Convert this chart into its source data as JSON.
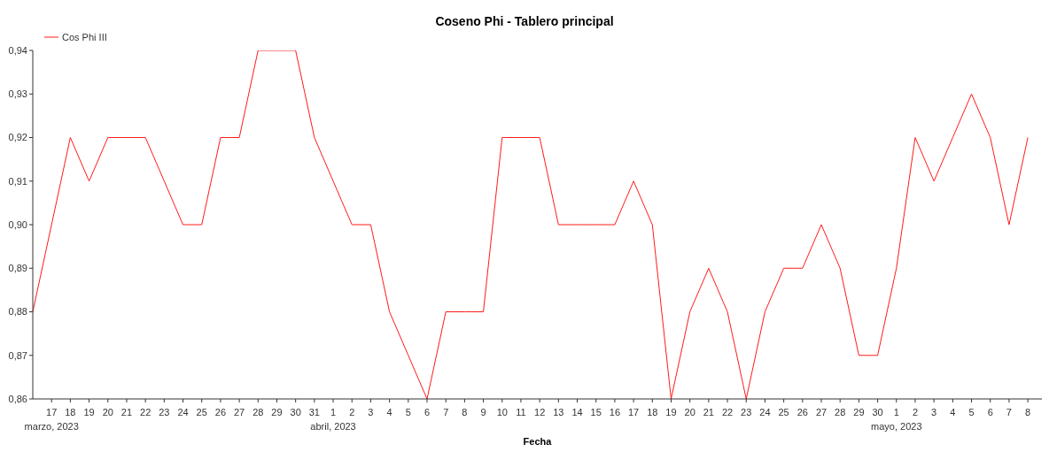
{
  "chart_data": {
    "type": "line",
    "title": "Coseno Phi - Tablero principal",
    "xlabel": "Fecha",
    "x": [
      "2023-03-16",
      "2023-03-17",
      "2023-03-18",
      "2023-03-19",
      "2023-03-20",
      "2023-03-21",
      "2023-03-22",
      "2023-03-23",
      "2023-03-24",
      "2023-03-25",
      "2023-03-26",
      "2023-03-27",
      "2023-03-28",
      "2023-03-29",
      "2023-03-30",
      "2023-03-31",
      "2023-04-01",
      "2023-04-02",
      "2023-04-03",
      "2023-04-04",
      "2023-04-05",
      "2023-04-06",
      "2023-04-07",
      "2023-04-08",
      "2023-04-09",
      "2023-04-10",
      "2023-04-11",
      "2023-04-12",
      "2023-04-13",
      "2023-04-14",
      "2023-04-15",
      "2023-04-16",
      "2023-04-17",
      "2023-04-18",
      "2023-04-19",
      "2023-04-20",
      "2023-04-21",
      "2023-04-22",
      "2023-04-23",
      "2023-04-24",
      "2023-04-25",
      "2023-04-26",
      "2023-04-27",
      "2023-04-28",
      "2023-04-29",
      "2023-04-30",
      "2023-05-01",
      "2023-05-02",
      "2023-05-03",
      "2023-05-04",
      "2023-05-05",
      "2023-05-06",
      "2023-05-07",
      "2023-05-08"
    ],
    "series": [
      {
        "name": "Cos Phi III",
        "color": "#ff1a1a",
        "values": [
          0.88,
          0.9,
          0.92,
          0.91,
          0.92,
          0.92,
          0.92,
          0.91,
          0.9,
          0.9,
          0.92,
          0.92,
          0.94,
          0.94,
          0.94,
          0.92,
          0.91,
          0.9,
          0.9,
          0.88,
          0.87,
          0.86,
          0.88,
          0.88,
          0.88,
          0.92,
          0.92,
          0.92,
          0.9,
          0.9,
          0.9,
          0.9,
          0.91,
          0.9,
          0.86,
          0.88,
          0.89,
          0.88,
          0.86,
          0.88,
          0.89,
          0.89,
          0.9,
          0.89,
          0.87,
          0.87,
          0.89,
          0.92,
          0.91,
          0.92,
          0.93,
          0.92,
          0.9,
          0.92
        ]
      }
    ],
    "xlim": [
      "2023-03-16",
      "2023-05-08T18:00"
    ],
    "xticks": [
      {
        "value": "2023-03-17",
        "label": "17\nmarzo, 2023"
      },
      {
        "value": "2023-03-18",
        "label": "18"
      },
      {
        "value": "2023-03-19",
        "label": "19"
      },
      {
        "value": "2023-03-20",
        "label": "20"
      },
      {
        "value": "2023-03-21",
        "label": "21"
      },
      {
        "value": "2023-03-22",
        "label": "22"
      },
      {
        "value": "2023-03-23",
        "label": "23"
      },
      {
        "value": "2023-03-24",
        "label": "24"
      },
      {
        "value": "2023-03-25",
        "label": "25"
      },
      {
        "value": "2023-03-26",
        "label": "26"
      },
      {
        "value": "2023-03-27",
        "label": "27"
      },
      {
        "value": "2023-03-28",
        "label": "28"
      },
      {
        "value": "2023-03-29",
        "label": "29"
      },
      {
        "value": "2023-03-30",
        "label": "30"
      },
      {
        "value": "2023-03-31",
        "label": "31"
      },
      {
        "value": "2023-04-01",
        "label": "1\nabril, 2023"
      },
      {
        "value": "2023-04-02",
        "label": "2"
      },
      {
        "value": "2023-04-03",
        "label": "3"
      },
      {
        "value": "2023-04-04",
        "label": "4"
      },
      {
        "value": "2023-04-05",
        "label": "5"
      },
      {
        "value": "2023-04-06",
        "label": "6"
      },
      {
        "value": "2023-04-07",
        "label": "7"
      },
      {
        "value": "2023-04-08",
        "label": "8"
      },
      {
        "value": "2023-04-09",
        "label": "9"
      },
      {
        "value": "2023-04-10",
        "label": "10"
      },
      {
        "value": "2023-04-11",
        "label": "11"
      },
      {
        "value": "2023-04-12",
        "label": "12"
      },
      {
        "value": "2023-04-13",
        "label": "13"
      },
      {
        "value": "2023-04-14",
        "label": "14"
      },
      {
        "value": "2023-04-15",
        "label": "15"
      },
      {
        "value": "2023-04-16",
        "label": "16"
      },
      {
        "value": "2023-04-17",
        "label": "17"
      },
      {
        "value": "2023-04-18",
        "label": "18"
      },
      {
        "value": "2023-04-19",
        "label": "19"
      },
      {
        "value": "2023-04-20",
        "label": "20"
      },
      {
        "value": "2023-04-21",
        "label": "21"
      },
      {
        "value": "2023-04-22",
        "label": "22"
      },
      {
        "value": "2023-04-23",
        "label": "23"
      },
      {
        "value": "2023-04-24",
        "label": "24"
      },
      {
        "value": "2023-04-25",
        "label": "25"
      },
      {
        "value": "2023-04-26",
        "label": "26"
      },
      {
        "value": "2023-04-27",
        "label": "27"
      },
      {
        "value": "2023-04-28",
        "label": "28"
      },
      {
        "value": "2023-04-29",
        "label": "29"
      },
      {
        "value": "2023-04-30",
        "label": "30"
      },
      {
        "value": "2023-05-01",
        "label": "1\nmayo, 2023"
      },
      {
        "value": "2023-05-02",
        "label": "2"
      },
      {
        "value": "2023-05-03",
        "label": "3"
      },
      {
        "value": "2023-05-04",
        "label": "4"
      },
      {
        "value": "2023-05-05",
        "label": "5"
      },
      {
        "value": "2023-05-06",
        "label": "6"
      },
      {
        "value": "2023-05-07",
        "label": "7"
      },
      {
        "value": "2023-05-08",
        "label": "8"
      }
    ],
    "ylim": [
      0.86,
      0.94
    ],
    "yticks": [
      {
        "value": 0.86,
        "label": "0,86"
      },
      {
        "value": 0.87,
        "label": "0,87"
      },
      {
        "value": 0.88,
        "label": "0,88"
      },
      {
        "value": 0.89,
        "label": "0,89"
      },
      {
        "value": 0.9,
        "label": "0,90"
      },
      {
        "value": 0.91,
        "label": "0,91"
      },
      {
        "value": 0.92,
        "label": "0,92"
      },
      {
        "value": 0.93,
        "label": "0,93"
      },
      {
        "value": 0.94,
        "label": "0,94"
      }
    ],
    "grid": false,
    "legend": "top left",
    "marker": "none",
    "line_style": "solid"
  }
}
